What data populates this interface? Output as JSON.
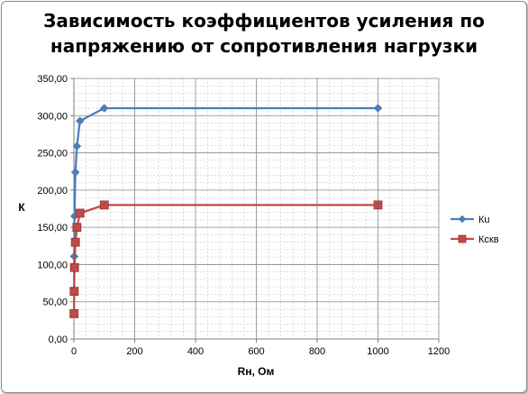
{
  "chart_data": {
    "type": "scatter",
    "title_line1": "Зависимость коэффициентов усиления по",
    "title_line2": "напряжению от сопротивления нагрузки",
    "xlabel": "Rн, Ом",
    "ylabel": "К",
    "xlim": [
      0,
      1200
    ],
    "ylim": [
      0,
      350
    ],
    "x_ticks": [
      "0",
      "200",
      "400",
      "600",
      "800",
      "1000",
      "1200"
    ],
    "y_ticks": [
      "0,00",
      "50,00",
      "100,00",
      "150,00",
      "200,00",
      "250,00",
      "300,00",
      "350,00"
    ],
    "grid": true,
    "legend_position": "right",
    "series": [
      {
        "name": "Кu",
        "color": "#4a7ebb",
        "marker": "diamond",
        "x": [
          0.5,
          1,
          2,
          5,
          10,
          20,
          100,
          1000
        ],
        "y": [
          62,
          111,
          165,
          224,
          259,
          293,
          310,
          310
        ]
      },
      {
        "name": "Кскв",
        "color": "#be4b48",
        "marker": "square",
        "x": [
          0.5,
          1,
          2,
          5,
          10,
          20,
          100,
          1000
        ],
        "y": [
          34,
          64,
          96,
          130,
          150,
          169,
          180,
          180
        ]
      }
    ]
  }
}
